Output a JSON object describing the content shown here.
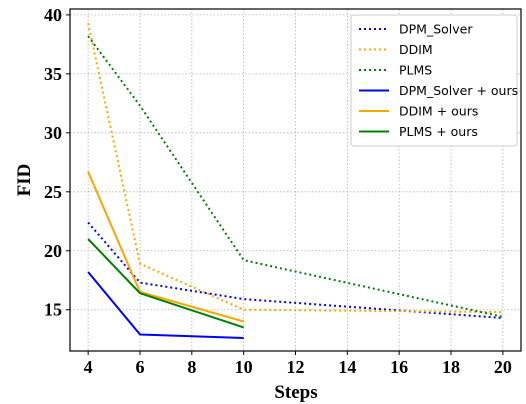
{
  "chart_data": {
    "type": "line",
    "xlabel": "Steps",
    "ylabel": "FID",
    "x_ticks": [
      4,
      6,
      8,
      10,
      12,
      14,
      16,
      18,
      20
    ],
    "y_ticks": [
      15,
      20,
      25,
      30,
      35,
      40
    ],
    "xlim": [
      3.3,
      20.7
    ],
    "ylim": [
      11.5,
      40.5
    ],
    "grid": true,
    "legend_position": "top-right",
    "series": [
      {
        "name": "DPM_Solver",
        "color": "#0000ff",
        "style": "dotted",
        "x": [
          4,
          6,
          10,
          20
        ],
        "y": [
          22.4,
          17.3,
          15.9,
          14.3
        ]
      },
      {
        "name": "DDIM",
        "color": "#ffa500",
        "style": "dotted",
        "x": [
          4,
          6,
          10,
          20
        ],
        "y": [
          39.3,
          18.9,
          15.0,
          14.8
        ]
      },
      {
        "name": "PLMS",
        "color": "#008000",
        "style": "dotted",
        "x": [
          4,
          6,
          10,
          20
        ],
        "y": [
          38.2,
          32.3,
          19.2,
          14.4
        ]
      },
      {
        "name": "DPM_Solver + ours",
        "color": "#0000ff",
        "style": "solid",
        "x": [
          4,
          6,
          10
        ],
        "y": [
          18.2,
          12.9,
          12.6
        ]
      },
      {
        "name": "DDIM + ours",
        "color": "#ffa500",
        "style": "solid",
        "x": [
          4,
          6,
          10
        ],
        "y": [
          26.7,
          16.5,
          14.0
        ]
      },
      {
        "name": "PLMS + ours",
        "color": "#008000",
        "style": "solid",
        "x": [
          4,
          6,
          10
        ],
        "y": [
          21.0,
          16.4,
          13.5
        ]
      }
    ]
  }
}
